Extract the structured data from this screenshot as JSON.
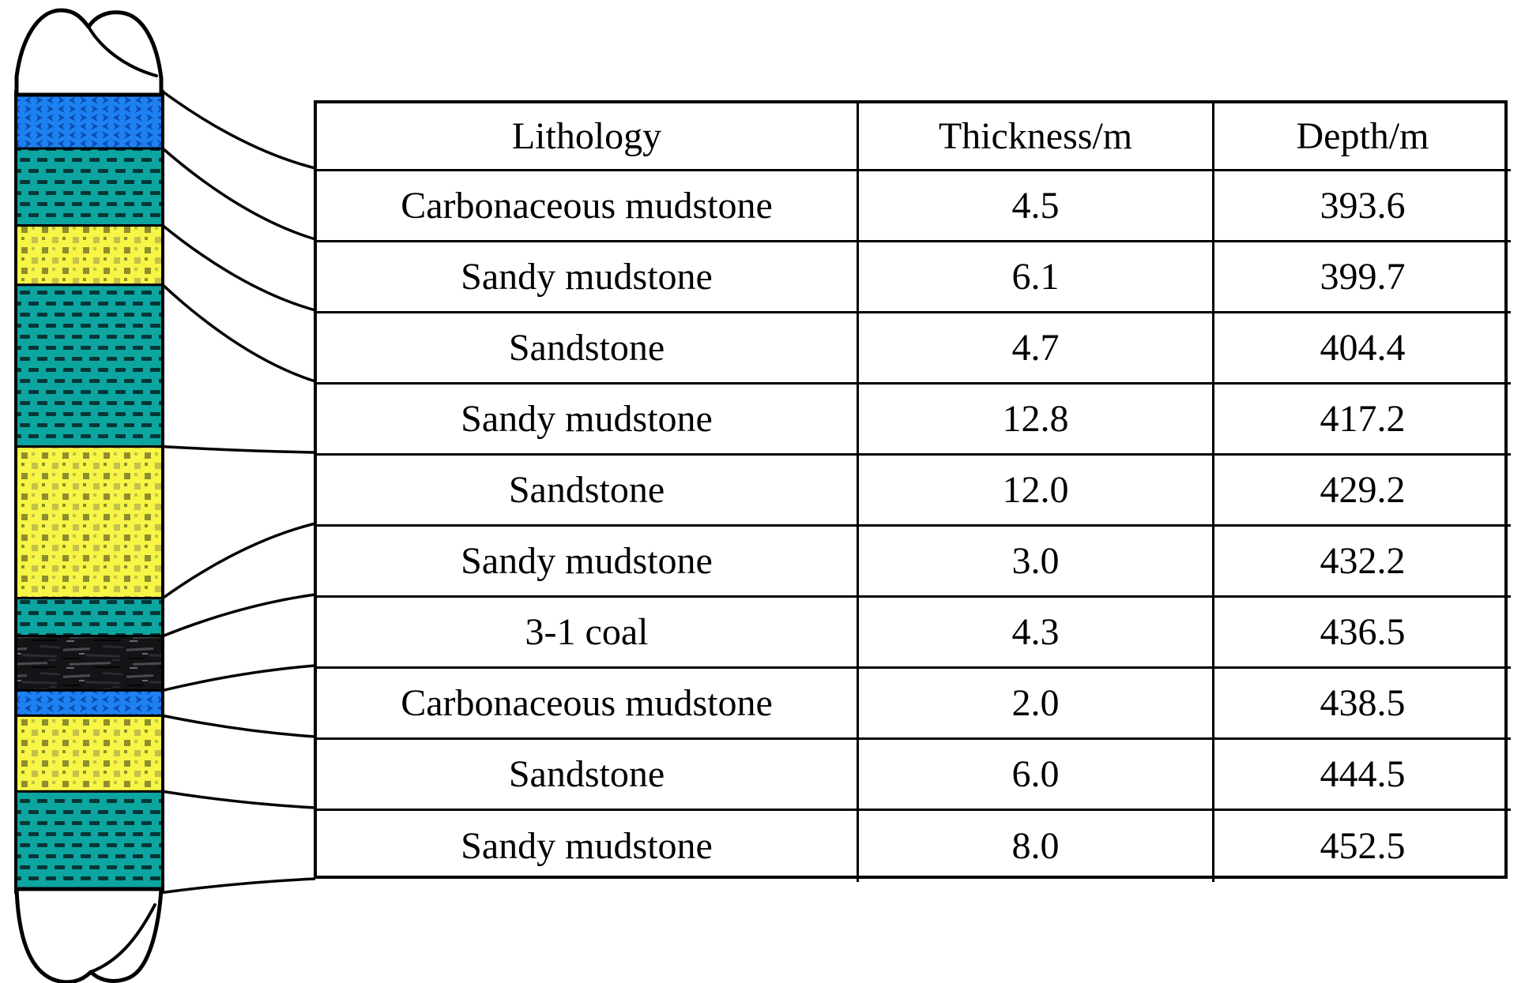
{
  "figure": {
    "type": "stratigraphic-column-with-table",
    "background_color": "#ffffff",
    "line_color": "#000000"
  },
  "table": {
    "headers": [
      "Lithology",
      "Thickness/m",
      "Depth/m"
    ],
    "rows": [
      {
        "lithology": "Carbonaceous mudstone",
        "thickness": "4.5",
        "depth": "393.6"
      },
      {
        "lithology": "Sandy mudstone",
        "thickness": "6.1",
        "depth": "399.7"
      },
      {
        "lithology": "Sandstone",
        "thickness": "4.7",
        "depth": "404.4"
      },
      {
        "lithology": "Sandy mudstone",
        "thickness": "12.8",
        "depth": "417.2"
      },
      {
        "lithology": "Sandstone",
        "thickness": "12.0",
        "depth": "429.2"
      },
      {
        "lithology": "Sandy mudstone",
        "thickness": "3.0",
        "depth": "432.2"
      },
      {
        "lithology": "3-1 coal",
        "thickness": "4.3",
        "depth": "436.5"
      },
      {
        "lithology": "Carbonaceous mudstone",
        "thickness": "2.0",
        "depth": "438.5"
      },
      {
        "lithology": "Sandstone",
        "thickness": "6.0",
        "depth": "444.5"
      },
      {
        "lithology": "Sandy mudstone",
        "thickness": "8.0",
        "depth": "452.5"
      }
    ]
  },
  "column": {
    "layers": [
      {
        "lithology": "Carbonaceous mudstone",
        "thickness_m": 4.5
      },
      {
        "lithology": "Sandy mudstone",
        "thickness_m": 6.1
      },
      {
        "lithology": "Sandstone",
        "thickness_m": 4.7
      },
      {
        "lithology": "Sandy mudstone",
        "thickness_m": 12.8
      },
      {
        "lithology": "Sandstone",
        "thickness_m": 12.0
      },
      {
        "lithology": "Sandy mudstone",
        "thickness_m": 3.0
      },
      {
        "lithology": "3-1 coal",
        "thickness_m": 4.3
      },
      {
        "lithology": "Carbonaceous mudstone",
        "thickness_m": 2.0
      },
      {
        "lithology": "Sandstone",
        "thickness_m": 6.0
      },
      {
        "lithology": "Sandy mudstone",
        "thickness_m": 8.0
      }
    ],
    "patterns": {
      "carbonaceous_mudstone": {
        "base": "#1e81f2",
        "mark": "#0a4cae"
      },
      "sandy_mudstone": {
        "base": "#0da5a0",
        "mark": "#063636"
      },
      "sandstone": {
        "base": "#f7f545",
        "mark": "#8e8e2e",
        "mark2": "#c2c24a"
      },
      "coal": {
        "base": "#141417",
        "streak_dark": "#050507",
        "streak_mid": "#2b2b31",
        "streak_light": "#4a4a52",
        "streak_bright": "#6a6a75"
      }
    },
    "outline_color": "#000000",
    "cap_fill": "#ffffff"
  }
}
